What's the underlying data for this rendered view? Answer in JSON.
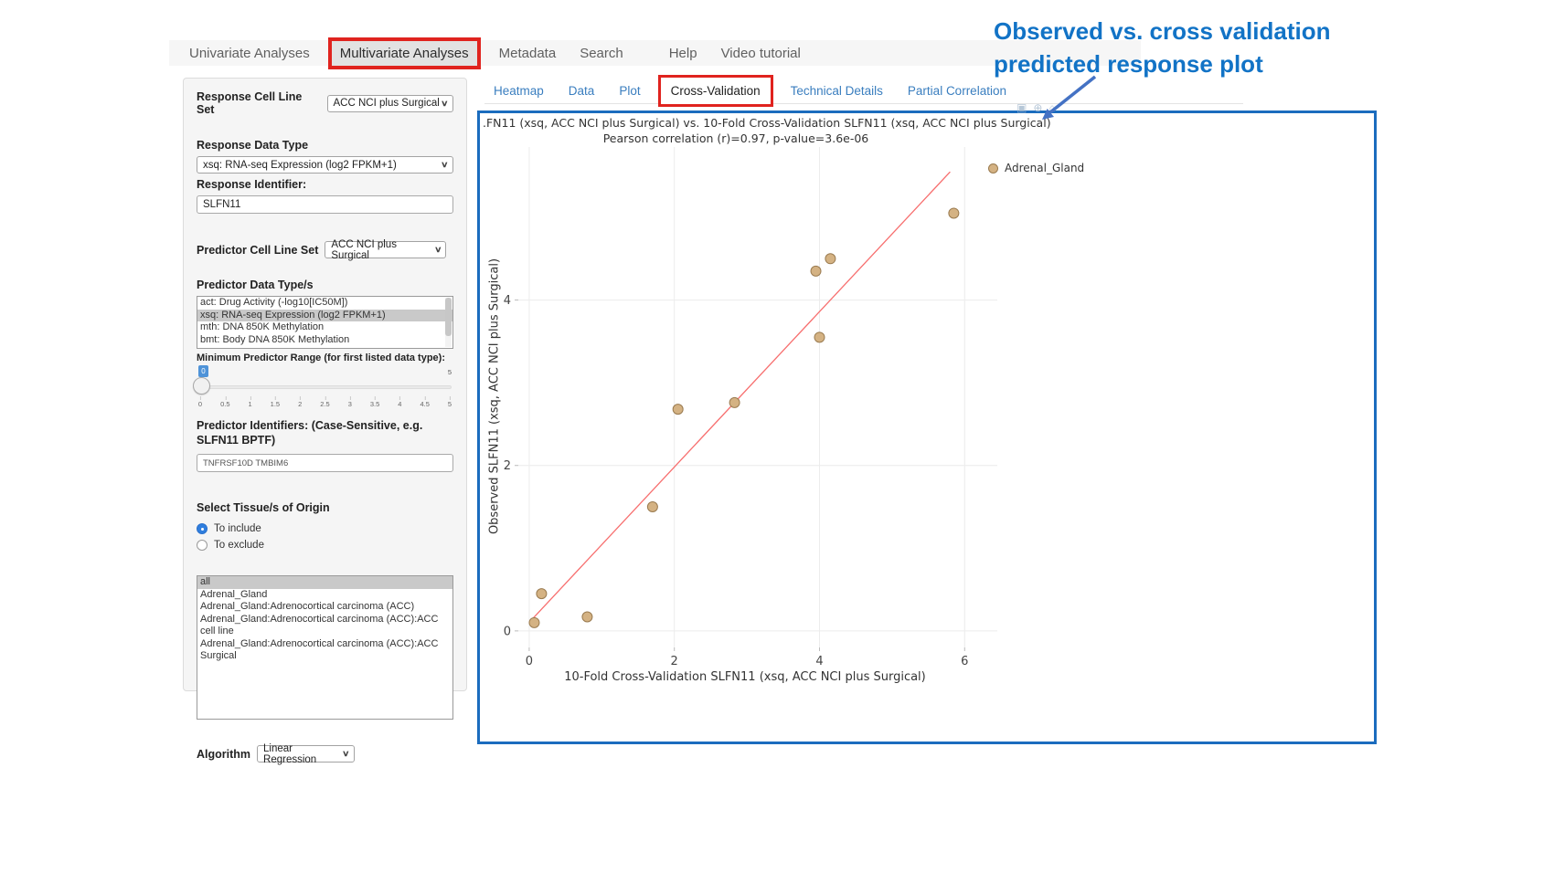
{
  "annotation": {
    "line1": "Observed vs. cross validation",
    "line2": "predicted response plot",
    "color": "#1273c6",
    "arrow_color": "#4472c4"
  },
  "nav": {
    "items": [
      {
        "label": "Univariate Analyses",
        "active": false,
        "highlighted": false
      },
      {
        "label": "Multivariate Analyses",
        "active": true,
        "highlighted": true
      },
      {
        "label": "Metadata",
        "active": false,
        "highlighted": false
      },
      {
        "label": "Search",
        "active": false,
        "highlighted": false
      },
      {
        "label": "Help",
        "active": false,
        "highlighted": false
      },
      {
        "label": "Video tutorial",
        "active": false,
        "highlighted": false
      }
    ]
  },
  "tabs": {
    "items": [
      {
        "label": "Heatmap",
        "active": false,
        "highlighted": false
      },
      {
        "label": "Data",
        "active": false,
        "highlighted": false
      },
      {
        "label": "Plot",
        "active": false,
        "highlighted": false
      },
      {
        "label": "Cross-Validation",
        "active": true,
        "highlighted": true
      },
      {
        "label": "Technical Details",
        "active": false,
        "highlighted": false
      },
      {
        "label": "Partial Correlation",
        "active": false,
        "highlighted": false
      }
    ]
  },
  "sidebar": {
    "response_cell_line_set": {
      "label": "Response Cell Line Set",
      "value": "ACC NCI plus Surgical"
    },
    "response_data_type": {
      "label": "Response Data Type",
      "value": "xsq: RNA-seq Expression (log2 FPKM+1)"
    },
    "response_identifier": {
      "label": "Response Identifier:",
      "value": "SLFN11"
    },
    "predictor_cell_line_set": {
      "label": "Predictor Cell Line Set",
      "value": "ACC NCI plus Surgical"
    },
    "predictor_data_types": {
      "label": "Predictor Data Type/s",
      "selected_index": 1,
      "options": [
        "act: Drug Activity (-log10[IC50M])",
        "xsq: RNA-seq Expression (log2 FPKM+1)",
        "mth: DNA 850K Methylation",
        "bmt: Body DNA 850K Methylation"
      ]
    },
    "min_predictor_range": {
      "label": "Minimum Predictor Range (for first listed data type):",
      "value": "0",
      "max_label": "5",
      "ticks": [
        "0",
        "0.5",
        "1",
        "1.5",
        "2",
        "2.5",
        "3",
        "3.5",
        "4",
        "4.5",
        "5"
      ]
    },
    "predictor_identifiers": {
      "label": "Predictor Identifiers: (Case-Sensitive, e.g. SLFN11 BPTF)",
      "value": "TNFRSF10D TMBIM6"
    },
    "tissue_origin": {
      "label": "Select Tissue/s of Origin",
      "options": [
        {
          "label": "To include",
          "selected": true
        },
        {
          "label": "To exclude",
          "selected": false
        }
      ]
    },
    "tissue_list": {
      "selected_index": 0,
      "options": [
        "all",
        "Adrenal_Gland",
        "Adrenal_Gland:Adrenocortical carcinoma (ACC)",
        "Adrenal_Gland:Adrenocortical carcinoma (ACC):ACC cell line",
        "Adrenal_Gland:Adrenocortical carcinoma (ACC):ACC Surgical"
      ]
    },
    "algorithm": {
      "label": "Algorithm",
      "value": "Linear Regression"
    }
  },
  "modebar": {
    "icons": [
      {
        "name": "camera-icon",
        "glyph": "▣"
      },
      {
        "name": "zoom-icon",
        "glyph": "⊕"
      },
      {
        "name": "home-icon",
        "glyph": "⌂"
      }
    ]
  },
  "chart_data": {
    "type": "scatter",
    "title": ".FN11 (xsq, ACC NCI plus Surgical) vs. 10-Fold Cross-Validation SLFN11 (xsq, ACC NCI plus Surgical)",
    "subtitle": "Pearson correlation (r)=0.97, p-value=3.6e-06",
    "xlabel": "10-Fold Cross-Validation SLFN11 (xsq, ACC NCI plus Surgical)",
    "ylabel": "Observed SLFN11 (xsq, ACC NCI plus Surgical)",
    "legend": [
      {
        "label": "Adrenal_Gland"
      }
    ],
    "legend_position": "right",
    "grid": true,
    "xlim": [
      -0.15,
      6.45
    ],
    "ylim": [
      -0.2,
      5.85
    ],
    "xticks": [
      0,
      2,
      4,
      6
    ],
    "yticks": [
      0,
      2,
      4
    ],
    "series": [
      {
        "name": "Adrenal_Gland",
        "points": [
          [
            0.07,
            0.1
          ],
          [
            0.17,
            0.45
          ],
          [
            0.8,
            0.17
          ],
          [
            1.7,
            1.5
          ],
          [
            2.05,
            2.68
          ],
          [
            2.83,
            2.76
          ],
          [
            4.0,
            3.55
          ],
          [
            3.95,
            4.35
          ],
          [
            4.15,
            4.5
          ],
          [
            5.85,
            5.05
          ]
        ]
      }
    ],
    "fit_line": {
      "x1": 0.05,
      "y1": 0.15,
      "x2": 5.8,
      "y2": 5.55
    }
  },
  "colors": {
    "highlight_red": "#e0231e",
    "frame_blue": "#1b6cbe",
    "tab_blue": "#3a7ebf",
    "point_fill": "#d4b283",
    "point_edge": "#9a7b50",
    "fit_line": "#f76e6e",
    "grid_line": "#ececec"
  }
}
